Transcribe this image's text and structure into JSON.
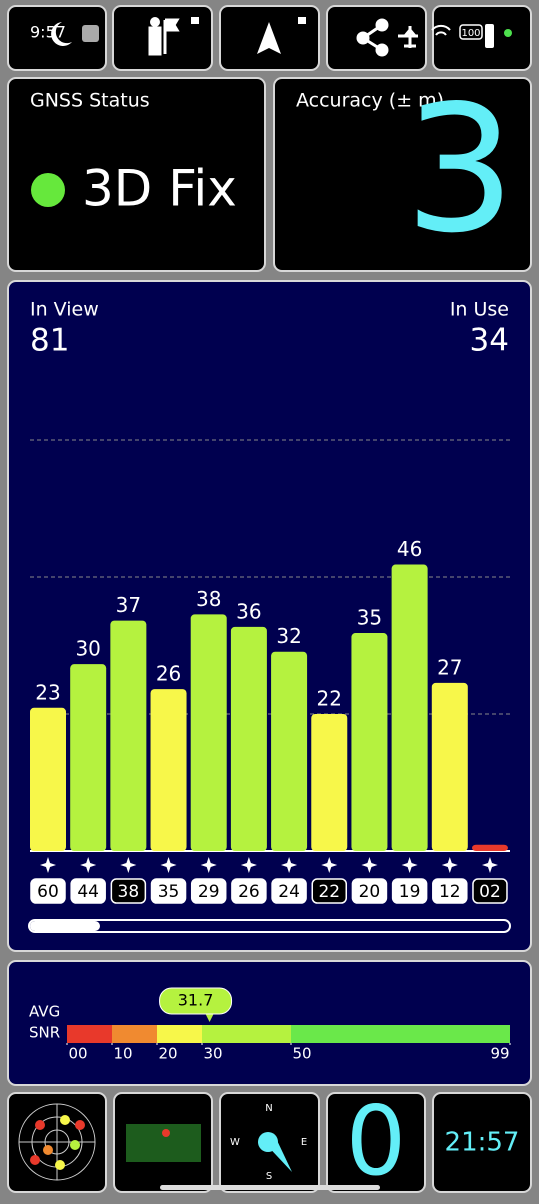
{
  "status_bar": {
    "time": "9:57",
    "battery": "100"
  },
  "gnss_status": {
    "title": "GNSS Status",
    "value": "3D Fix"
  },
  "accuracy": {
    "title": "Accuracy (± m)",
    "value": 3
  },
  "signal": {
    "in_view_label": "In View",
    "in_view": 81,
    "in_use_label": "In Use",
    "in_use": 34,
    "values": [
      23,
      30,
      37,
      26,
      38,
      36,
      32,
      22,
      35,
      46,
      27,
      1
    ],
    "value_labels": [
      "23",
      "30",
      "37",
      "26",
      "38",
      "36",
      "32",
      "22",
      "35",
      "46",
      "27",
      null
    ],
    "colors": [
      "#f7f74a",
      "#b5f23f",
      "#b5f23f",
      "#f7f74a",
      "#b5f23f",
      "#b5f23f",
      "#b5f23f",
      "#f7f74a",
      "#b5f23f",
      "#b5f23f",
      "#f7f74a",
      "#e8392b"
    ],
    "satellite_ids": [
      "60",
      "44",
      "38",
      "35",
      "29",
      "26",
      "24",
      "22",
      "20",
      "19",
      "12",
      "02"
    ],
    "used": [
      true,
      true,
      false,
      true,
      true,
      true,
      true,
      false,
      true,
      true,
      true,
      false
    ],
    "ylim": [
      0,
      66
    ],
    "grid": [
      22,
      44,
      66
    ]
  },
  "snr": {
    "avg_label": "AVG",
    "snr_label": "SNR",
    "avg": 31.7,
    "ticks": [
      {
        "value": 0,
        "label": "00"
      },
      10,
      20,
      30,
      50,
      99
    ],
    "colors": [
      "#e8392b",
      "#f08a30",
      "#f7f74a",
      "#b5f23f",
      "#6ae84a"
    ]
  },
  "compass": {
    "n": "N",
    "w": "W",
    "e": "E",
    "s": "S"
  },
  "satellites_count": 0,
  "clock": "21:57"
}
